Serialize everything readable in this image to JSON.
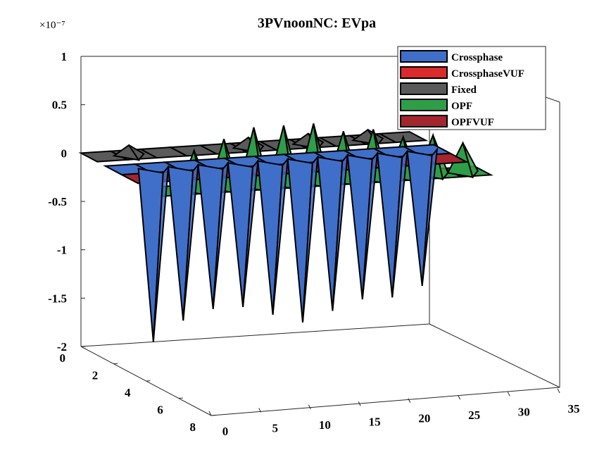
{
  "chart_data": {
    "type": "surface3d",
    "title": "3PVnoonNC: EVpa",
    "zlabel_exponent": "×10⁻⁷",
    "z_ticks": [
      "1",
      "0.5",
      "0",
      "-0.5",
      "-1",
      "-1.5",
      "-2"
    ],
    "y_ticks": [
      "0",
      "2",
      "4",
      "6",
      "8"
    ],
    "x_ticks": [
      "0",
      "5",
      "10",
      "15",
      "20",
      "25",
      "30",
      "35"
    ],
    "zlim": [
      -2e-07,
      1e-07
    ],
    "xlim": [
      0,
      35
    ],
    "ylim": [
      0,
      8
    ],
    "grid": false,
    "legend_position": "top-right",
    "spike_x": [
      4,
      7,
      10,
      13,
      16,
      19,
      22,
      25,
      28,
      31
    ],
    "series": [
      {
        "name": "Crossphase",
        "color": "#3F6FC8",
        "spikes": [
          -1.8e-07,
          -1.6e-07,
          -1.5e-07,
          -1.5e-07,
          -1.6e-07,
          -1.7e-07,
          -1.6e-07,
          -1.5e-07,
          -1.5e-07,
          -1.4e-07
        ]
      },
      {
        "name": "CrossphaseVUF",
        "color": "#D92B2B",
        "spikes": [
          0,
          0,
          0,
          0,
          0,
          0,
          0,
          0,
          0,
          0
        ]
      },
      {
        "name": "Fixed",
        "color": "#5A5A5A",
        "spikes": [
          1e-08,
          0,
          0,
          0,
          1e-08,
          0,
          1e-08,
          0,
          1e-08,
          0
        ]
      },
      {
        "name": "OPF",
        "color": "#2E9E48",
        "spikes": [
          4e-08,
          5e-08,
          6e-08,
          6e-08,
          6e-08,
          5e-08,
          5e-08,
          4e-08,
          4e-08,
          3e-08
        ]
      },
      {
        "name": "OPFVUF",
        "color": "#A3262E",
        "spikes": [
          0,
          0,
          0,
          0,
          0,
          0,
          0,
          0,
          0,
          0
        ]
      }
    ]
  }
}
